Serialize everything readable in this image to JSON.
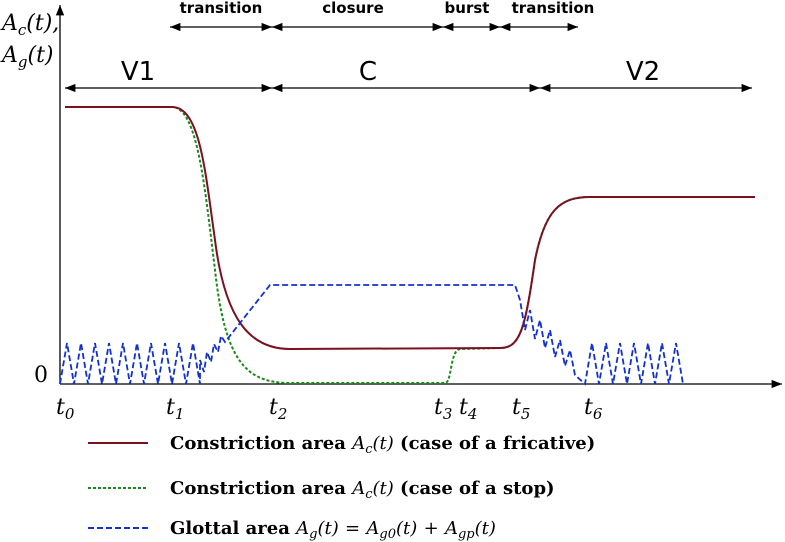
{
  "axis": {
    "y_label": [
      {
        "base": "A",
        "sub": "c",
        "rest": "(t),"
      },
      {
        "base": "A",
        "sub": "g",
        "rest": "(t)"
      }
    ],
    "zero": "0"
  },
  "time_labels": [
    {
      "base": "t",
      "sub": "0"
    },
    {
      "base": "t",
      "sub": "1"
    },
    {
      "base": "t",
      "sub": "2"
    },
    {
      "base": "t",
      "sub": "3"
    },
    {
      "base": "t",
      "sub": "4"
    },
    {
      "base": "t",
      "sub": "5"
    },
    {
      "base": "t",
      "sub": "6"
    }
  ],
  "phases_top": [
    "transition",
    "closure",
    "burst",
    "transition"
  ],
  "phases_main": [
    "V1",
    "C",
    "V2"
  ],
  "legend": [
    {
      "text": "Constriction area",
      "math": [
        {
          "base": "A",
          "sub": "c"
        }
      ],
      "rest": "(t)",
      "note": "(case of a fricative)"
    },
    {
      "text": "Constriction area",
      "math": [
        {
          "base": "A",
          "sub": "c"
        }
      ],
      "rest": "(t)",
      "note": "(case of a stop)"
    },
    {
      "text": "Glottal area",
      "math": [
        {
          "base": "A",
          "sub": "g"
        },
        {
          "base": "A",
          "sub": "g0"
        },
        {
          "base": "A",
          "sub": "gp"
        }
      ],
      "rest": "(t)",
      "eq": "=",
      "plus": "+"
    }
  ]
}
